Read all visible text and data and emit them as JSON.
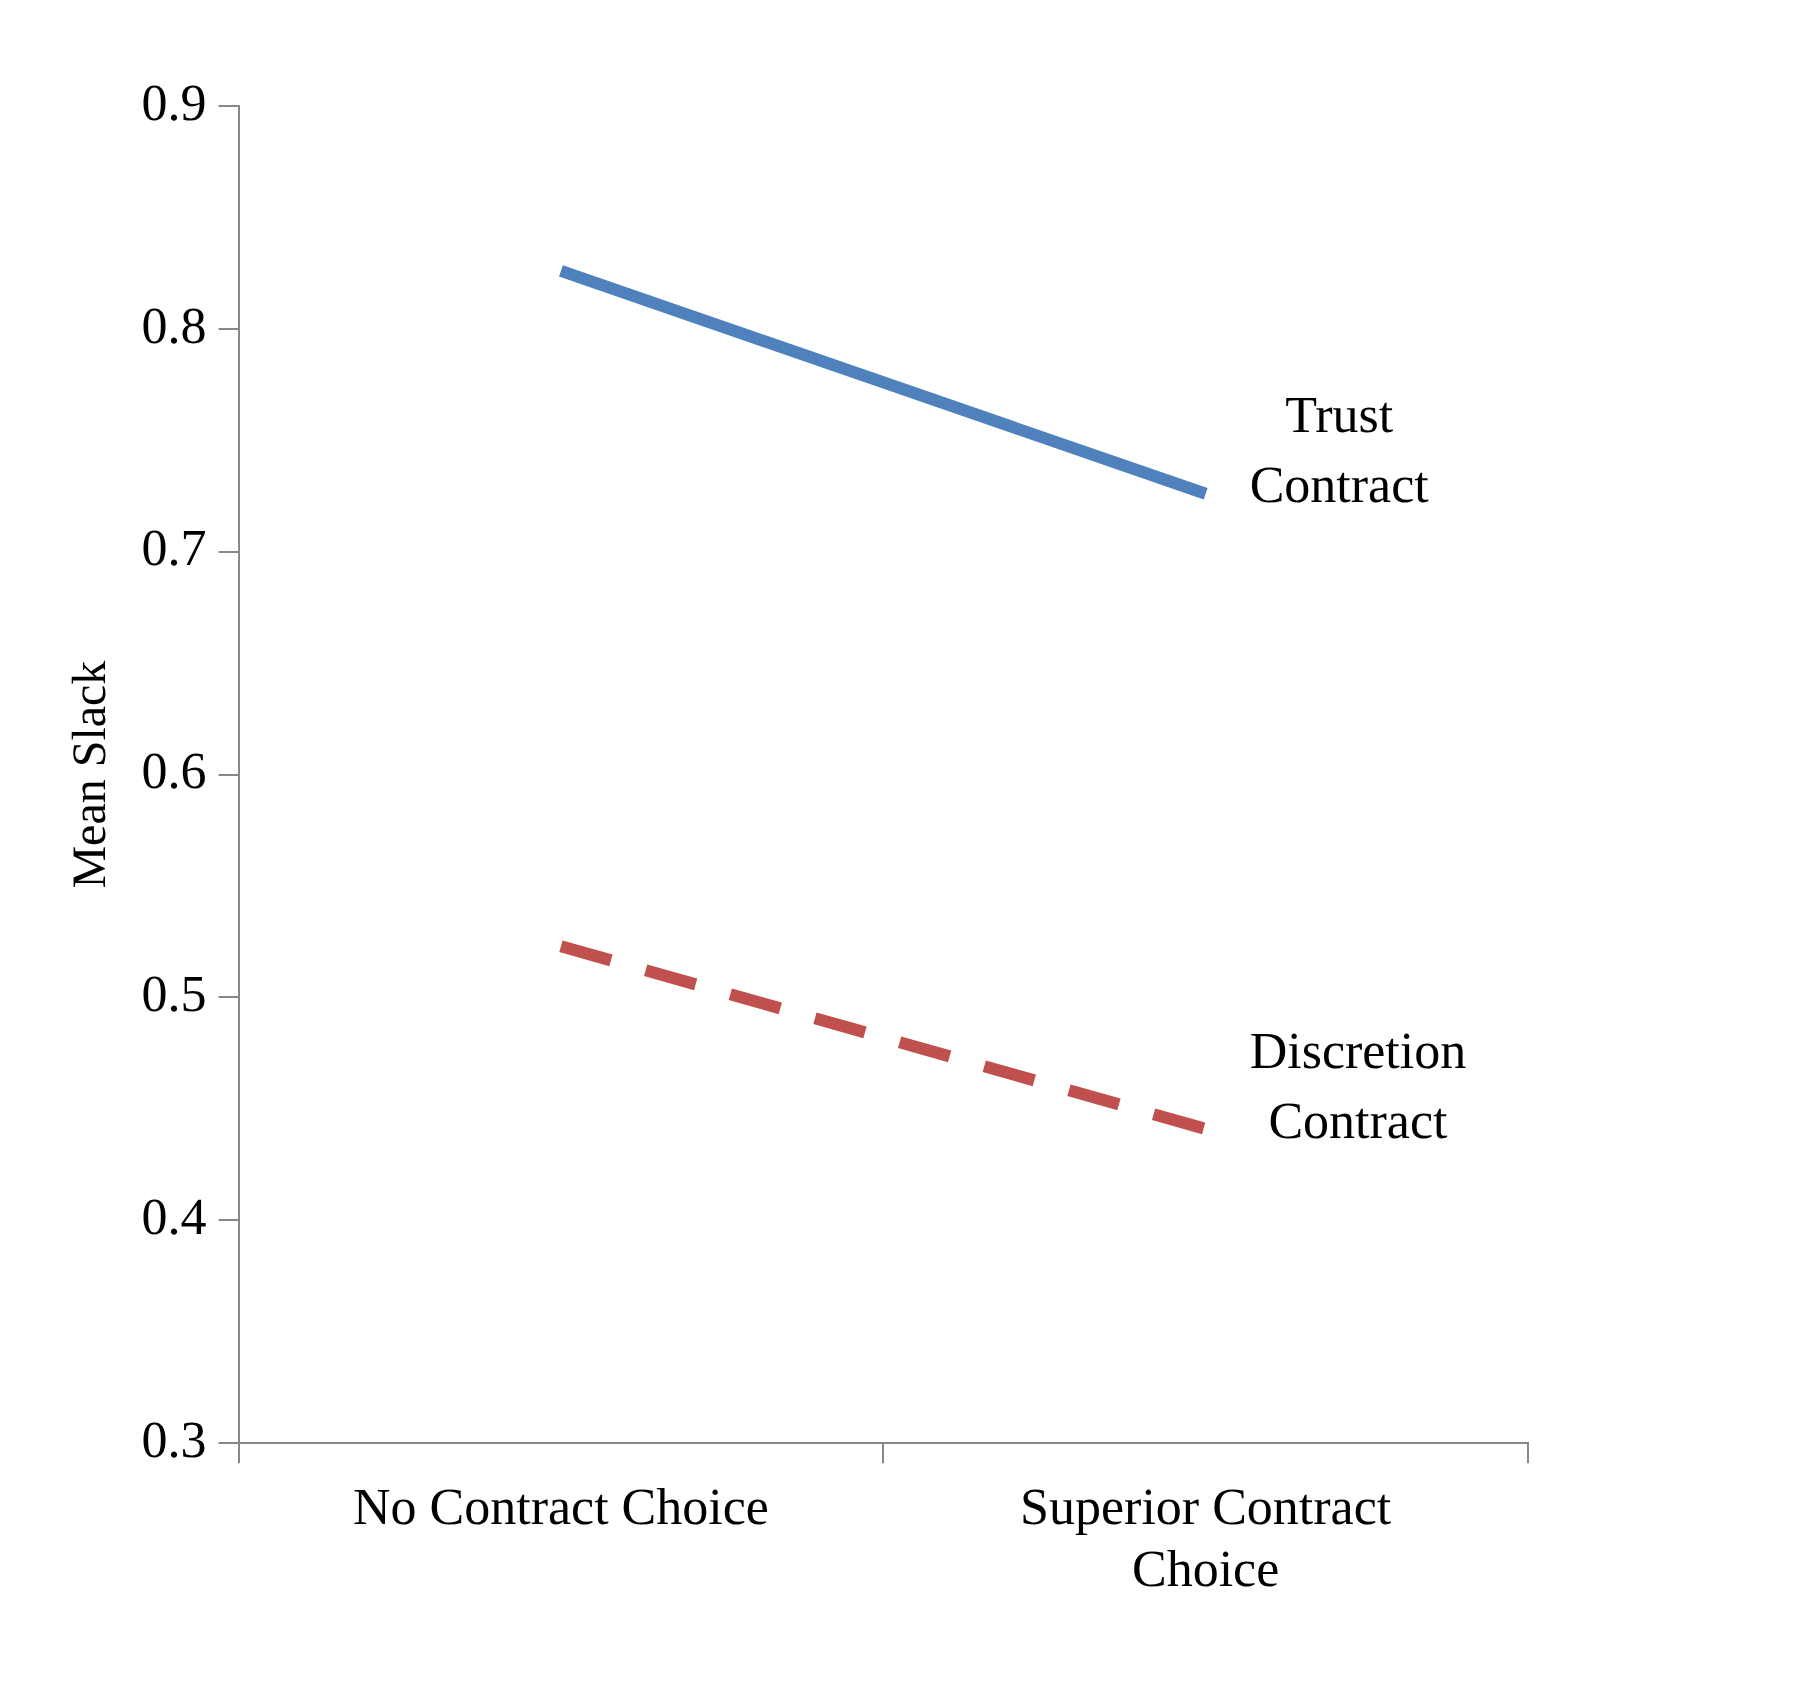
{
  "chart_data": {
    "type": "line",
    "ylabel": "Mean Slack",
    "categories": [
      "No Contract Choice",
      "Superior Contract Choice"
    ],
    "series": [
      {
        "name": "Trust Contract",
        "color": "#4f81bd",
        "line_style": "solid",
        "values": [
          0.826,
          0.726
        ]
      },
      {
        "name": "Discretion Contract",
        "color": "#c0504d",
        "line_style": "dashed",
        "values": [
          0.523,
          0.441
        ]
      }
    ],
    "ylim": [
      0.3,
      0.9
    ],
    "yticks": [
      0.3,
      0.4,
      0.5,
      0.6,
      0.7,
      0.8,
      0.9
    ],
    "legend": false,
    "marker": "none"
  }
}
